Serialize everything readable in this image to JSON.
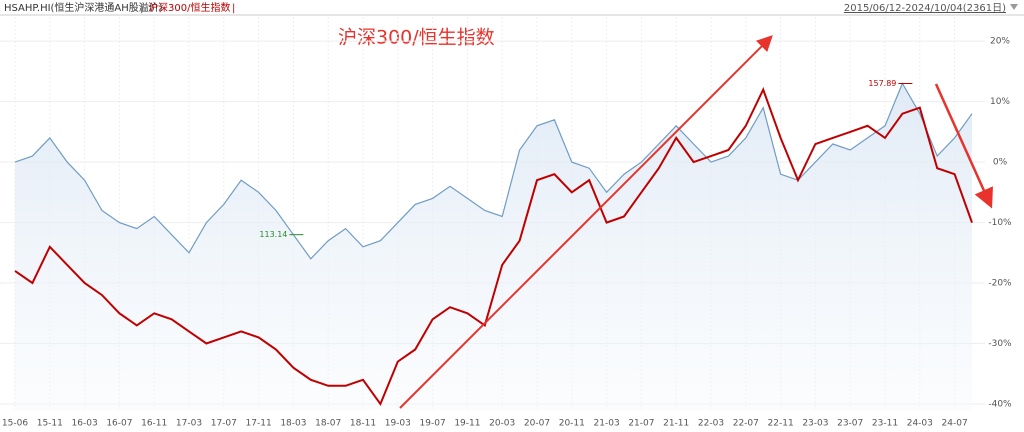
{
  "chart_data": {
    "type": "line",
    "title": "沪深300/恒生指数",
    "date_range": "2015/06/12-2024/10/04(2361日)",
    "categories": [
      "15-06",
      null,
      "15-11",
      null,
      "16-03",
      null,
      "16-07",
      null,
      "16-11",
      null,
      "17-03",
      null,
      "17-07",
      null,
      "17-11",
      null,
      "18-03",
      null,
      "18-07",
      null,
      "18-11",
      null,
      "19-03",
      null,
      "19-07",
      null,
      "19-11",
      null,
      "20-03",
      null,
      "20-07",
      null,
      "20-11",
      null,
      "21-03",
      null,
      "21-07",
      null,
      "21-11",
      null,
      "22-03",
      null,
      "22-07",
      null,
      "22-11",
      null,
      "23-03",
      null,
      "23-07",
      null,
      "23-11",
      null,
      "24-03",
      null,
      "24-07",
      null
    ],
    "series": [
      {
        "name": "HSAHP.HI(恒生沪深港通AH股溢价)",
        "color": "#6f9cc4",
        "values": [
          0,
          1,
          4,
          0,
          -3,
          -8,
          -10,
          -11,
          -9,
          -12,
          -15,
          -10,
          -7,
          -3,
          -5,
          -8,
          -12,
          -16,
          -13,
          -11,
          -14,
          -13,
          -10,
          -7,
          -6,
          -4,
          -6,
          -8,
          -9,
          2,
          6,
          7,
          0,
          -1,
          -5,
          -2,
          0,
          3,
          6,
          3,
          0,
          1,
          4,
          9,
          -2,
          -3,
          0,
          3,
          2,
          4,
          6,
          13,
          8,
          1,
          4,
          8
        ]
      },
      {
        "name": "沪深300/恒生指数",
        "color": "#c00000",
        "values": [
          -18,
          -20,
          -14,
          -17,
          -20,
          -22,
          -25,
          -27,
          -25,
          -26,
          -28,
          -30,
          -29,
          -28,
          -29,
          -31,
          -34,
          -36,
          -37,
          -37,
          -36,
          -40,
          -33,
          -31,
          -26,
          -24,
          -25,
          -27,
          -17,
          -13,
          -3,
          -2,
          -5,
          -3,
          -10,
          -9,
          -5,
          -1,
          4,
          0,
          1,
          2,
          6,
          12,
          4,
          -3,
          3,
          4,
          5,
          6,
          4,
          8,
          9,
          -1,
          -2,
          -10
        ]
      }
    ],
    "annotations": [
      {
        "text": "113.14",
        "index": 16
      },
      {
        "text": "157.89",
        "index": 51
      }
    ],
    "ylim": [
      -41,
      24
    ],
    "yticks": [
      {
        "value": 20,
        "label": "20%"
      },
      {
        "value": 10,
        "label": "10%"
      },
      {
        "value": 0,
        "label": "0%"
      },
      {
        "value": -10,
        "label": "-10%"
      },
      {
        "value": -20,
        "label": "-20%"
      },
      {
        "value": -30,
        "label": "-30%"
      },
      {
        "value": -40,
        "label": "-40%"
      }
    ],
    "grid": true
  }
}
